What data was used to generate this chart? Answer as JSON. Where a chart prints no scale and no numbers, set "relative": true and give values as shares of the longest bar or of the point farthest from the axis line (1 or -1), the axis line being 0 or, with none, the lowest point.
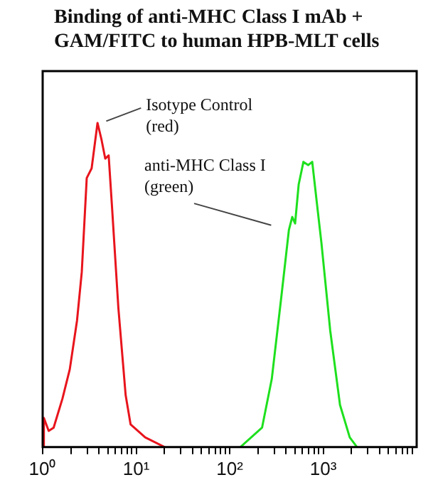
{
  "chart_data": {
    "type": "line",
    "title": "Binding of anti-MHC Class I mAb + GAM/FITC to human HPB-MLT cells",
    "relative": true,
    "log": "x",
    "grid": false,
    "legend": false,
    "marker": "none",
    "x": [
      1,
      1.03,
      1.16,
      1.31,
      1.63,
      1.95,
      2.33,
      2.62,
      2.96,
      3.34,
      3.86,
      4.25,
      4.67,
      5.08,
      5.52,
      6.45,
      7.72,
      8.72,
      12.5,
      20.2
    ],
    "xlim": [
      1,
      10000
    ],
    "xticks": [
      {
        "value": 1,
        "label": "10⁰"
      },
      {
        "value": 2,
        "label": null
      },
      {
        "value": 3,
        "label": null
      },
      {
        "value": 4,
        "label": null
      },
      {
        "value": 5,
        "label": null
      },
      {
        "value": 6,
        "label": null
      },
      {
        "value": 7,
        "label": null
      },
      {
        "value": 8,
        "label": null
      },
      {
        "value": 9,
        "label": null
      },
      {
        "value": 10,
        "label": "10¹"
      },
      {
        "value": 20,
        "label": null
      },
      {
        "value": 30,
        "label": null
      },
      {
        "value": 40,
        "label": null
      },
      {
        "value": 50,
        "label": null
      },
      {
        "value": 60,
        "label": null
      },
      {
        "value": 70,
        "label": null
      },
      {
        "value": 80,
        "label": null
      },
      {
        "value": 90,
        "label": null
      },
      {
        "value": 100,
        "label": "10²"
      },
      {
        "value": 200,
        "label": null
      },
      {
        "value": 300,
        "label": null
      },
      {
        "value": 400,
        "label": null
      },
      {
        "value": 500,
        "label": null
      },
      {
        "value": 600,
        "label": null
      },
      {
        "value": 700,
        "label": null
      },
      {
        "value": 800,
        "label": null
      },
      {
        "value": 900,
        "label": null
      },
      {
        "value": 1000,
        "label": "10³"
      },
      {
        "value": 2000,
        "label": null
      },
      {
        "value": 3000,
        "label": null
      },
      {
        "value": 4000,
        "label": null
      },
      {
        "value": 5000,
        "label": null
      },
      {
        "value": 6000,
        "label": null
      },
      {
        "value": 7000,
        "label": null
      },
      {
        "value": 8000,
        "label": null
      },
      {
        "value": 9000,
        "label": null
      }
    ],
    "series": [
      {
        "color": "#e8141c",
        "values": [
          0,
          0.09,
          0.05,
          0.06,
          0.15,
          0.24,
          0.39,
          0.54,
          0.83,
          0.86,
          1,
          0.95,
          0.89,
          0.9,
          0.74,
          0.43,
          0.16,
          0.07,
          0.03,
          0
        ]
      },
      {
        "color": "#1ee01e",
        "x": [
          130,
          222,
          282,
          359,
          430,
          467,
          501,
          547,
          615,
          693,
          764,
          851,
          958,
          1189,
          1514,
          1924,
          2303
        ],
        "values": [
          0,
          0.06,
          0.21,
          0.47,
          0.67,
          0.71,
          0.69,
          0.81,
          0.88,
          0.87,
          0.88,
          0.76,
          0.63,
          0.36,
          0.13,
          0.03,
          0
        ]
      }
    ],
    "annotations": [
      "Isotype Control\n(red)",
      "anti-MHC Class I\n(green)"
    ]
  }
}
